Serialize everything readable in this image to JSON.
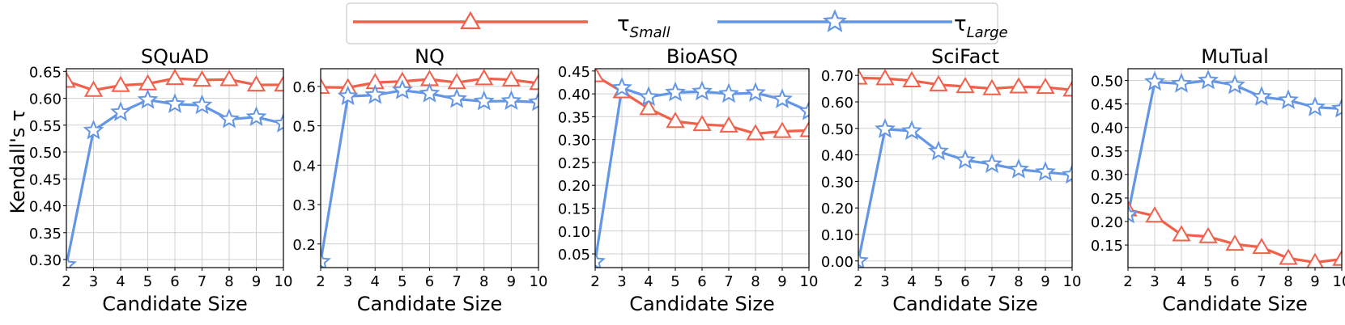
{
  "legend": {
    "small_label": "τ",
    "small_sub": "Small",
    "large_label": "τ",
    "large_sub": "Large"
  },
  "colors": {
    "small": "#f0604a",
    "large": "#6496e6"
  },
  "ylabel": "Kendall's τ",
  "chart_data": [
    {
      "type": "line",
      "title": "SQuAD",
      "xlabel": "Candidate Size",
      "ylabel": "Kendall's τ",
      "x": [
        2,
        3,
        4,
        5,
        6,
        7,
        8,
        9,
        10
      ],
      "xlim": [
        2,
        10
      ],
      "ylim": [
        0.285,
        0.655
      ],
      "yticks": [
        0.3,
        0.35,
        0.4,
        0.45,
        0.5,
        0.55,
        0.6,
        0.65
      ],
      "ytick_labels": [
        "0.30",
        "0.35",
        "0.40",
        "0.45",
        "0.50",
        "0.55",
        "0.60",
        "0.65"
      ],
      "series": [
        {
          "name": "τSmall",
          "marker": "triangle",
          "values": [
            0.632,
            0.615,
            0.624,
            0.627,
            0.637,
            0.634,
            0.635,
            0.625,
            0.625
          ]
        },
        {
          "name": "τLarge",
          "marker": "star",
          "values": [
            0.29,
            0.54,
            0.574,
            0.597,
            0.589,
            0.587,
            0.561,
            0.565,
            0.553
          ]
        }
      ]
    },
    {
      "type": "line",
      "title": "NQ",
      "xlabel": "Candidate Size",
      "ylabel": "",
      "x": [
        2,
        3,
        4,
        5,
        6,
        7,
        8,
        9,
        10
      ],
      "xlim": [
        2,
        10
      ],
      "ylim": [
        0.14,
        0.645
      ],
      "yticks": [
        0.2,
        0.3,
        0.4,
        0.5,
        0.6
      ],
      "ytick_labels": [
        "0.2",
        "0.3",
        "0.4",
        "0.5",
        "0.6"
      ],
      "series": [
        {
          "name": "τSmall",
          "marker": "triangle",
          "values": [
            0.598,
            0.597,
            0.61,
            0.613,
            0.618,
            0.61,
            0.62,
            0.617,
            0.608
          ]
        },
        {
          "name": "τLarge",
          "marker": "star",
          "values": [
            0.155,
            0.575,
            0.578,
            0.59,
            0.582,
            0.568,
            0.562,
            0.563,
            0.56
          ]
        }
      ]
    },
    {
      "type": "line",
      "title": "BioASQ",
      "xlabel": "Candidate Size",
      "ylabel": "",
      "x": [
        2,
        3,
        4,
        5,
        6,
        7,
        8,
        9,
        10
      ],
      "xlim": [
        2,
        10
      ],
      "ylim": [
        0.02,
        0.455
      ],
      "yticks": [
        0.05,
        0.1,
        0.15,
        0.2,
        0.25,
        0.3,
        0.35,
        0.4,
        0.45
      ],
      "ytick_labels": [
        "0.05",
        "0.10",
        "0.15",
        "0.20",
        "0.25",
        "0.30",
        "0.35",
        "0.40",
        "0.45"
      ],
      "series": [
        {
          "name": "τSmall",
          "marker": "triangle",
          "values": [
            0.44,
            0.405,
            0.368,
            0.34,
            0.333,
            0.33,
            0.313,
            0.318,
            0.32
          ]
        },
        {
          "name": "τLarge",
          "marker": "star",
          "values": [
            0.033,
            0.413,
            0.393,
            0.403,
            0.405,
            0.4,
            0.402,
            0.388,
            0.362
          ]
        }
      ]
    },
    {
      "type": "line",
      "title": "SciFact",
      "xlabel": "Candidate Size",
      "ylabel": "",
      "x": [
        2,
        3,
        4,
        5,
        6,
        7,
        8,
        9,
        10
      ],
      "xlim": [
        2,
        10
      ],
      "ylim": [
        -0.025,
        0.725
      ],
      "yticks": [
        0.0,
        0.1,
        0.2,
        0.3,
        0.4,
        0.5,
        0.6,
        0.7
      ],
      "ytick_labels": [
        "0.00",
        "0.10",
        "0.20",
        "0.30",
        "0.40",
        "0.50",
        "0.60",
        "0.70"
      ],
      "series": [
        {
          "name": "τSmall",
          "marker": "triangle",
          "values": [
            0.69,
            0.688,
            0.68,
            0.665,
            0.658,
            0.65,
            0.657,
            0.655,
            0.645
          ]
        },
        {
          "name": "τLarge",
          "marker": "star",
          "values": [
            0.0,
            0.497,
            0.49,
            0.413,
            0.38,
            0.365,
            0.345,
            0.335,
            0.325
          ]
        }
      ]
    },
    {
      "type": "line",
      "title": "MuTual",
      "xlabel": "Candidate Size",
      "ylabel": "",
      "x": [
        2,
        3,
        4,
        5,
        6,
        7,
        8,
        9,
        10
      ],
      "xlim": [
        2,
        10
      ],
      "ylim": [
        0.102,
        0.525
      ],
      "yticks": [
        0.15,
        0.2,
        0.25,
        0.3,
        0.35,
        0.4,
        0.45,
        0.5
      ],
      "ytick_labels": [
        "0.15",
        "0.20",
        "0.25",
        "0.30",
        "0.35",
        "0.40",
        "0.45",
        "0.50"
      ],
      "series": [
        {
          "name": "τSmall",
          "marker": "triangle",
          "values": [
            0.225,
            0.212,
            0.172,
            0.168,
            0.152,
            0.145,
            0.122,
            0.113,
            0.12
          ]
        },
        {
          "name": "τLarge",
          "marker": "star",
          "values": [
            0.215,
            0.497,
            0.493,
            0.5,
            0.49,
            0.465,
            0.458,
            0.443,
            0.44
          ]
        }
      ]
    }
  ]
}
